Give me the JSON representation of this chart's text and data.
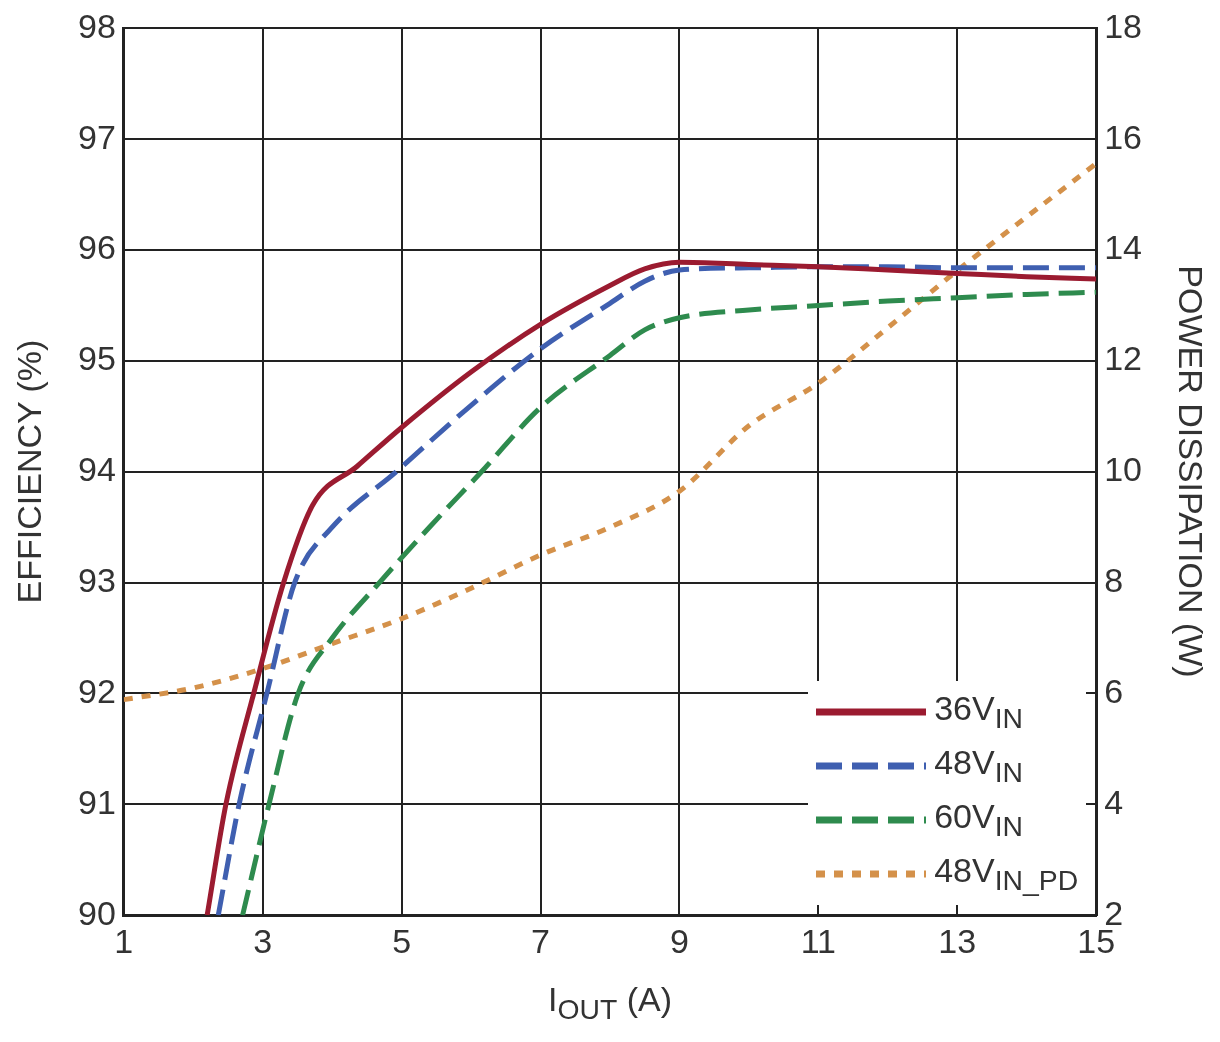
{
  "chart_data": {
    "type": "line",
    "xlabel": "I$_{OUT}$ (A)",
    "ylabel": "EFFICIENCY (%)",
    "y2label": "POWER DISSIPATION (W)",
    "xlim": [
      1,
      15
    ],
    "xticks": [
      1,
      3,
      5,
      7,
      9,
      11,
      13,
      15
    ],
    "ylim": [
      90,
      98
    ],
    "yticks": [
      90,
      91,
      92,
      93,
      94,
      95,
      96,
      97,
      98
    ],
    "y2lim": [
      2,
      18
    ],
    "y2ticks": [
      2,
      4,
      6,
      8,
      10,
      12,
      14,
      16,
      18
    ],
    "grid": true,
    "legend": "bottom right",
    "marker": "none",
    "series": [
      {
        "name": "36V$_{IN}$",
        "color": "#9b1b30",
        "line_style": "solid",
        "x": [
          2.2,
          2.47,
          2.87,
          3.3,
          3.72,
          4.36,
          5,
          6,
          7,
          8,
          8.5,
          9,
          10,
          11,
          12,
          13,
          14,
          15
        ],
        "values": [
          90,
          91,
          92,
          93,
          93.7,
          94.05,
          94.4,
          94.9,
          95.33,
          95.68,
          95.83,
          95.89,
          95.87,
          95.85,
          95.82,
          95.79,
          95.76,
          95.74
        ]
      },
      {
        "name": "48V$_{IN}$",
        "color": "#3f5fb0",
        "line_style": "dashed",
        "x": [
          2.36,
          2.66,
          3.06,
          3.46,
          4,
          4.92,
          6,
          7,
          8,
          8.5,
          9,
          10,
          11,
          12,
          13,
          14,
          15
        ],
        "values": [
          90,
          91,
          92,
          93,
          93.5,
          94,
          94.6,
          95.11,
          95.52,
          95.72,
          95.82,
          95.84,
          95.85,
          95.85,
          95.84,
          95.84,
          95.84
        ]
      },
      {
        "name": "60V$_{IN}$",
        "color": "#2e8b4e",
        "line_style": "dashed",
        "x": [
          2.71,
          3.09,
          3.51,
          4,
          4.68,
          5.4,
          6.15,
          7,
          8,
          8.5,
          9,
          10,
          11,
          12,
          13,
          14,
          15
        ],
        "values": [
          90,
          91,
          92,
          92.5,
          93,
          93.5,
          94,
          94.58,
          95.05,
          95.28,
          95.39,
          95.46,
          95.5,
          95.54,
          95.57,
          95.6,
          95.62
        ]
      },
      {
        "name": "48V$_{IN_PD}$",
        "color": "#d4914a",
        "line_style": "dotted",
        "axis": "y2",
        "x": [
          1,
          2,
          3,
          4,
          5,
          6,
          7,
          8,
          9,
          10,
          11,
          12,
          13,
          14,
          15
        ],
        "values": [
          5.89,
          6.1,
          6.45,
          6.9,
          7.35,
          7.9,
          8.5,
          9.0,
          9.65,
          10.83,
          11.6,
          12.6,
          13.63,
          14.6,
          15.56
        ]
      }
    ]
  }
}
